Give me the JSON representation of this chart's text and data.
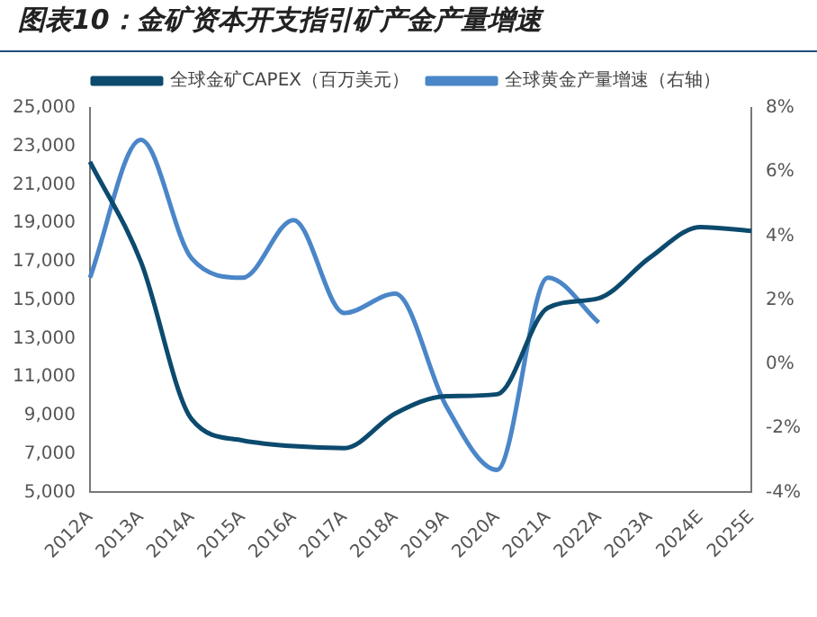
{
  "chart_data": {
    "type": "line",
    "title": "图表10：金矿资本开支指引矿产金产量增速",
    "categories": [
      "2012A",
      "2013A",
      "2014A",
      "2015A",
      "2016A",
      "2017A",
      "2018A",
      "2019A",
      "2020A",
      "2021A",
      "2022A",
      "2023A",
      "2024E",
      "2025E"
    ],
    "series": [
      {
        "name": "全球金矿CAPEX（百万美元）",
        "color": "#0c4a6e",
        "values": [
          22200,
          17000,
          8800,
          7700,
          7400,
          7300,
          9100,
          10000,
          10100,
          14600,
          15100,
          17200,
          18800,
          18600
        ]
      },
      {
        "name": "全球黄金产量增速（右轴）",
        "color": "#4a86c8",
        "axis": "y2",
        "values": [
          2.7,
          7.0,
          3.3,
          2.7,
          4.5,
          1.6,
          2.2,
          -1.3,
          -3.3,
          2.7,
          1.3,
          null,
          null,
          null
        ]
      }
    ],
    "ylim": [
      5000,
      25000
    ],
    "yticks": [
      {
        "value": 5000,
        "label": "5,000"
      },
      {
        "value": 7000,
        "label": "7,000"
      },
      {
        "value": 9000,
        "label": "9,000"
      },
      {
        "value": 11000,
        "label": "11,000"
      },
      {
        "value": 13000,
        "label": "13,000"
      },
      {
        "value": 15000,
        "label": "15,000"
      },
      {
        "value": 17000,
        "label": "17,000"
      },
      {
        "value": 19000,
        "label": "19,000"
      },
      {
        "value": 21000,
        "label": "21,000"
      },
      {
        "value": 23000,
        "label": "23,000"
      },
      {
        "value": 25000,
        "label": "25,000"
      }
    ],
    "y2lim": [
      -4,
      8
    ],
    "y2ticks": [
      {
        "value": -4,
        "label": "-4%"
      },
      {
        "value": -2,
        "label": "-2%"
      },
      {
        "value": 0,
        "label": "0%"
      },
      {
        "value": 2,
        "label": "2%"
      },
      {
        "value": 4,
        "label": "4%"
      },
      {
        "value": 6,
        "label": "6%"
      },
      {
        "value": 8,
        "label": "8%"
      }
    ],
    "grid": false,
    "legend": "top",
    "marker": "none"
  }
}
